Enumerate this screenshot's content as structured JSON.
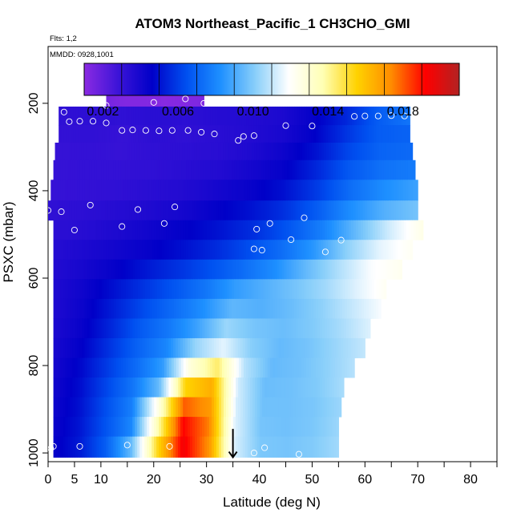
{
  "chart_data": {
    "type": "heatmap",
    "title": "ATOM3 Northeast_Pacific_1 CH3CHO_GMI",
    "annotations": {
      "flights": "Flts: 1,2",
      "dates": "MMDD: 0928,1001"
    },
    "xlabel": "Latitude (deg N)",
    "ylabel": "PSXC (mbar)",
    "xlim": [
      0,
      85
    ],
    "ylim": [
      1020,
      70
    ],
    "x_ticks": [
      0,
      5,
      10,
      20,
      30,
      40,
      50,
      60,
      70,
      80
    ],
    "y_ticks": [
      200,
      400,
      600,
      800,
      1000
    ],
    "colorbar": {
      "range": [
        0.001,
        0.021
      ],
      "ticks": [
        0.002,
        0.006,
        0.01,
        0.014,
        0.018
      ],
      "tick_labels": [
        "0.002",
        "0.006",
        "0.010",
        "0.014",
        "0.018"
      ],
      "colors": [
        "#8b2be2",
        "#3c14d8",
        "#0000c8",
        "#0050f0",
        "#1e90ff",
        "#87cefa",
        "#ffffff",
        "#ffffb4",
        "#ffd200",
        "#ff8c00",
        "#ff0000",
        "#b22222"
      ]
    },
    "grid": false,
    "bands": [
      {
        "pressure": 185,
        "lat": [
          11,
          29.5
        ],
        "values": [
          0.0015,
          0.0012,
          0.0012,
          0.0011,
          0.0012,
          0.0013
        ]
      },
      {
        "pressure": 230,
        "lat": [
          2,
          68.5
        ],
        "values": [
          0.0032,
          0.0033,
          0.0032,
          0.0034,
          0.0033,
          0.0035,
          0.0036,
          0.0038,
          0.0045,
          0.0055,
          0.0068,
          0.0075
        ]
      },
      {
        "pressure": 270,
        "lat": [
          2,
          68.5
        ],
        "values": [
          0.0031,
          0.0032,
          0.003,
          0.0033,
          0.0032,
          0.0034,
          0.0036,
          0.0039,
          0.0046,
          0.0058,
          0.0068,
          0.007
        ]
      },
      {
        "pressure": 310,
        "lat": [
          1.3,
          69
        ],
        "values": [
          0.003,
          0.0031,
          0.003,
          0.0032,
          0.0033,
          0.0034,
          0.0037,
          0.0042,
          0.005,
          0.0062,
          0.007,
          0.0072
        ]
      },
      {
        "pressure": 350,
        "lat": [
          1,
          69.5
        ],
        "values": [
          0.003,
          0.0031,
          0.0031,
          0.0032,
          0.0034,
          0.0036,
          0.004,
          0.0045,
          0.0055,
          0.0067,
          0.0074,
          0.0077
        ]
      },
      {
        "pressure": 400,
        "lat": [
          0.5,
          70
        ],
        "values": [
          0.003,
          0.0031,
          0.0032,
          0.0034,
          0.0036,
          0.004,
          0.0044,
          0.005,
          0.006,
          0.0073,
          0.0082,
          0.0088
        ]
      },
      {
        "pressure": 445,
        "lat": [
          0,
          70
        ],
        "values": [
          0.0032,
          0.0033,
          0.0035,
          0.0037,
          0.004,
          0.0045,
          0.005,
          0.0057,
          0.0068,
          0.0082,
          0.0092,
          0.0098
        ]
      },
      {
        "pressure": 490,
        "lat": [
          1,
          71
        ],
        "values": [
          0.0033,
          0.0035,
          0.0038,
          0.0042,
          0.0046,
          0.0051,
          0.0057,
          0.0066,
          0.0078,
          0.0095,
          0.0112,
          0.0125
        ]
      },
      {
        "pressure": 535,
        "lat": [
          1,
          69
        ],
        "values": [
          0.0035,
          0.0038,
          0.0041,
          0.0045,
          0.005,
          0.0056,
          0.0064,
          0.0073,
          0.0085,
          0.0102,
          0.0115,
          0.0122
        ]
      },
      {
        "pressure": 580,
        "lat": [
          1,
          67
        ],
        "values": [
          0.0036,
          0.004,
          0.0045,
          0.0052,
          0.0058,
          0.0065,
          0.0073,
          0.0082,
          0.0095,
          0.0107,
          0.0118,
          0.0123
        ]
      },
      {
        "pressure": 625,
        "lat": [
          1,
          64
        ],
        "values": [
          0.0037,
          0.0042,
          0.005,
          0.0058,
          0.0066,
          0.0075,
          0.0086,
          0.0092,
          0.0098,
          0.0105,
          0.0114,
          0.0122
        ]
      },
      {
        "pressure": 670,
        "lat": [
          1,
          63
        ],
        "values": [
          0.0037,
          0.0043,
          0.0053,
          0.0063,
          0.0072,
          0.0082,
          0.0094,
          0.0092,
          0.0096,
          0.0102,
          0.011,
          0.0118
        ]
      },
      {
        "pressure": 715,
        "lat": [
          1,
          61
        ],
        "values": [
          0.0038,
          0.0044,
          0.0055,
          0.0067,
          0.0076,
          0.0088,
          0.0104,
          0.0098,
          0.0096,
          0.01,
          0.0106,
          0.0114
        ]
      },
      {
        "pressure": 760,
        "lat": [
          1,
          60
        ],
        "values": [
          0.0039,
          0.0046,
          0.0058,
          0.007,
          0.008,
          0.0103,
          0.0115,
          0.0101,
          0.0095,
          0.0098,
          0.0104,
          0.011
        ]
      },
      {
        "pressure": 805,
        "lat": [
          1,
          58
        ],
        "values": [
          0.004,
          0.0048,
          0.006,
          0.0072,
          0.0086,
          0.0128,
          0.0145,
          0.0108,
          0.0095,
          0.0097,
          0.0102,
          0.0108
        ]
      },
      {
        "pressure": 850,
        "lat": [
          1,
          56
        ],
        "values": [
          0.0041,
          0.0049,
          0.0062,
          0.0075,
          0.0095,
          0.0155,
          0.0165,
          0.0112,
          0.0096,
          0.0097,
          0.01,
          0.0106
        ]
      },
      {
        "pressure": 895,
        "lat": [
          1,
          55.5
        ],
        "values": [
          0.0042,
          0.005,
          0.0064,
          0.0078,
          0.0125,
          0.018,
          0.017,
          0.0113,
          0.0097,
          0.0097,
          0.0099,
          0.0104
        ]
      },
      {
        "pressure": 940,
        "lat": [
          1,
          55
        ],
        "values": [
          0.0043,
          0.0051,
          0.0065,
          0.008,
          0.0135,
          0.0192,
          0.0175,
          0.0114,
          0.0098,
          0.0097,
          0.0099,
          0.0104
        ]
      },
      {
        "pressure": 985,
        "lat": [
          1,
          55
        ],
        "values": [
          0.0044,
          0.0052,
          0.0068,
          0.0095,
          0.0152,
          0.0195,
          0.0172,
          0.0113,
          0.0099,
          0.0098,
          0.01,
          0.0105
        ]
      }
    ],
    "sample_points": [
      [
        11,
        205
      ],
      [
        20,
        198
      ],
      [
        26,
        190
      ],
      [
        29.5,
        200
      ],
      [
        3,
        220
      ],
      [
        4,
        242
      ],
      [
        6,
        241
      ],
      [
        8.5,
        241
      ],
      [
        11,
        245
      ],
      [
        14,
        262
      ],
      [
        16,
        261
      ],
      [
        18.5,
        262
      ],
      [
        21,
        263
      ],
      [
        23.5,
        262
      ],
      [
        26.5,
        262
      ],
      [
        29,
        266
      ],
      [
        31.5,
        270
      ],
      [
        36,
        285
      ],
      [
        37,
        276
      ],
      [
        39,
        274
      ],
      [
        45,
        251
      ],
      [
        50,
        252
      ],
      [
        58,
        230
      ],
      [
        60,
        229
      ],
      [
        62.5,
        229
      ],
      [
        65,
        228
      ],
      [
        67.5,
        229
      ],
      [
        8,
        433
      ],
      [
        17,
        443
      ],
      [
        24,
        437
      ],
      [
        0,
        445
      ],
      [
        2.5,
        448
      ],
      [
        5,
        490
      ],
      [
        14,
        482
      ],
      [
        22,
        475
      ],
      [
        39.5,
        488
      ],
      [
        42,
        475
      ],
      [
        46,
        512
      ],
      [
        48.5,
        462
      ],
      [
        52.5,
        540
      ],
      [
        55.5,
        513
      ],
      [
        39,
        533
      ],
      [
        40.5,
        536
      ],
      [
        1,
        985
      ],
      [
        0.5,
        990
      ],
      [
        6,
        985
      ],
      [
        15,
        982
      ],
      [
        23,
        985
      ],
      [
        39,
        1000
      ],
      [
        41,
        988
      ],
      [
        47.5,
        1003
      ]
    ],
    "arrow_marker": {
      "lat": 35,
      "pressure_from": 945,
      "pressure_to": 1010
    }
  }
}
